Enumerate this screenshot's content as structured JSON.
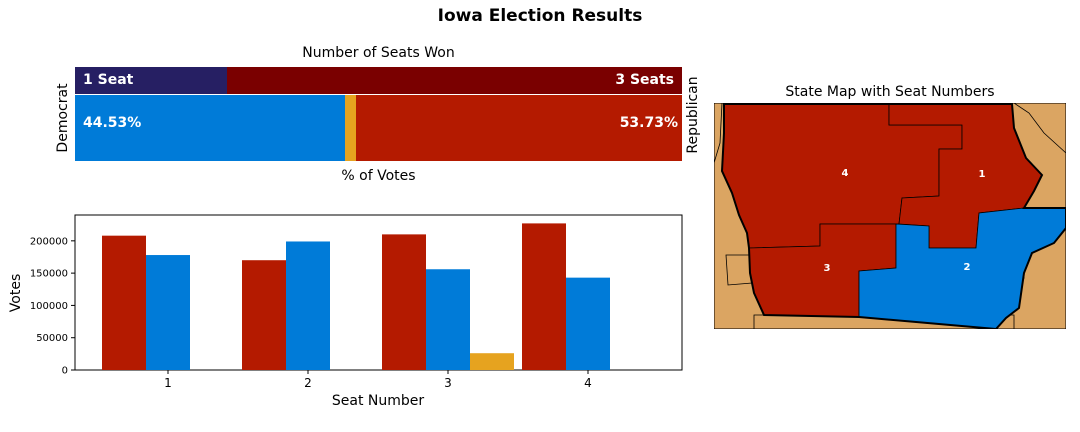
{
  "title": "Iowa Election Results",
  "colors": {
    "dem_seat": "#261F63",
    "rep_seat": "#7A0000",
    "dem": "#007BD8",
    "rep": "#B41A00",
    "other": "#E6A31F",
    "land": "#DBA562"
  },
  "seats_panel": {
    "title": "Number of Seats Won",
    "dem_label": "Democrat",
    "rep_label": "Republican",
    "dem_seats": 1,
    "rep_seats": 3,
    "dem_seats_text": "1 Seat",
    "rep_seats_text": "3 Seats",
    "dem_pct": 44.53,
    "rep_pct": 53.73,
    "dem_pct_text": "44.53%",
    "rep_pct_text": "53.73%",
    "votes_caption": "% of Votes"
  },
  "chart_data": {
    "type": "bar",
    "xlabel": "Seat Number",
    "ylabel": "Votes",
    "categories": [
      "1",
      "2",
      "3",
      "4"
    ],
    "ylim": [
      0,
      240000
    ],
    "yticks": [
      0,
      50000,
      100000,
      150000,
      200000
    ],
    "series": [
      {
        "key": "rep",
        "values": [
          208000,
          170000,
          210000,
          227000
        ]
      },
      {
        "key": "dem",
        "values": [
          178000,
          199000,
          156000,
          143000
        ]
      },
      {
        "key": "other",
        "values": [
          0,
          0,
          26000,
          0
        ]
      }
    ]
  },
  "map": {
    "title": "State Map with Seat Numbers",
    "districts": [
      {
        "number": "1",
        "party": "rep"
      },
      {
        "number": "2",
        "party": "dem"
      },
      {
        "number": "3",
        "party": "rep"
      },
      {
        "number": "4",
        "party": "rep"
      }
    ]
  }
}
